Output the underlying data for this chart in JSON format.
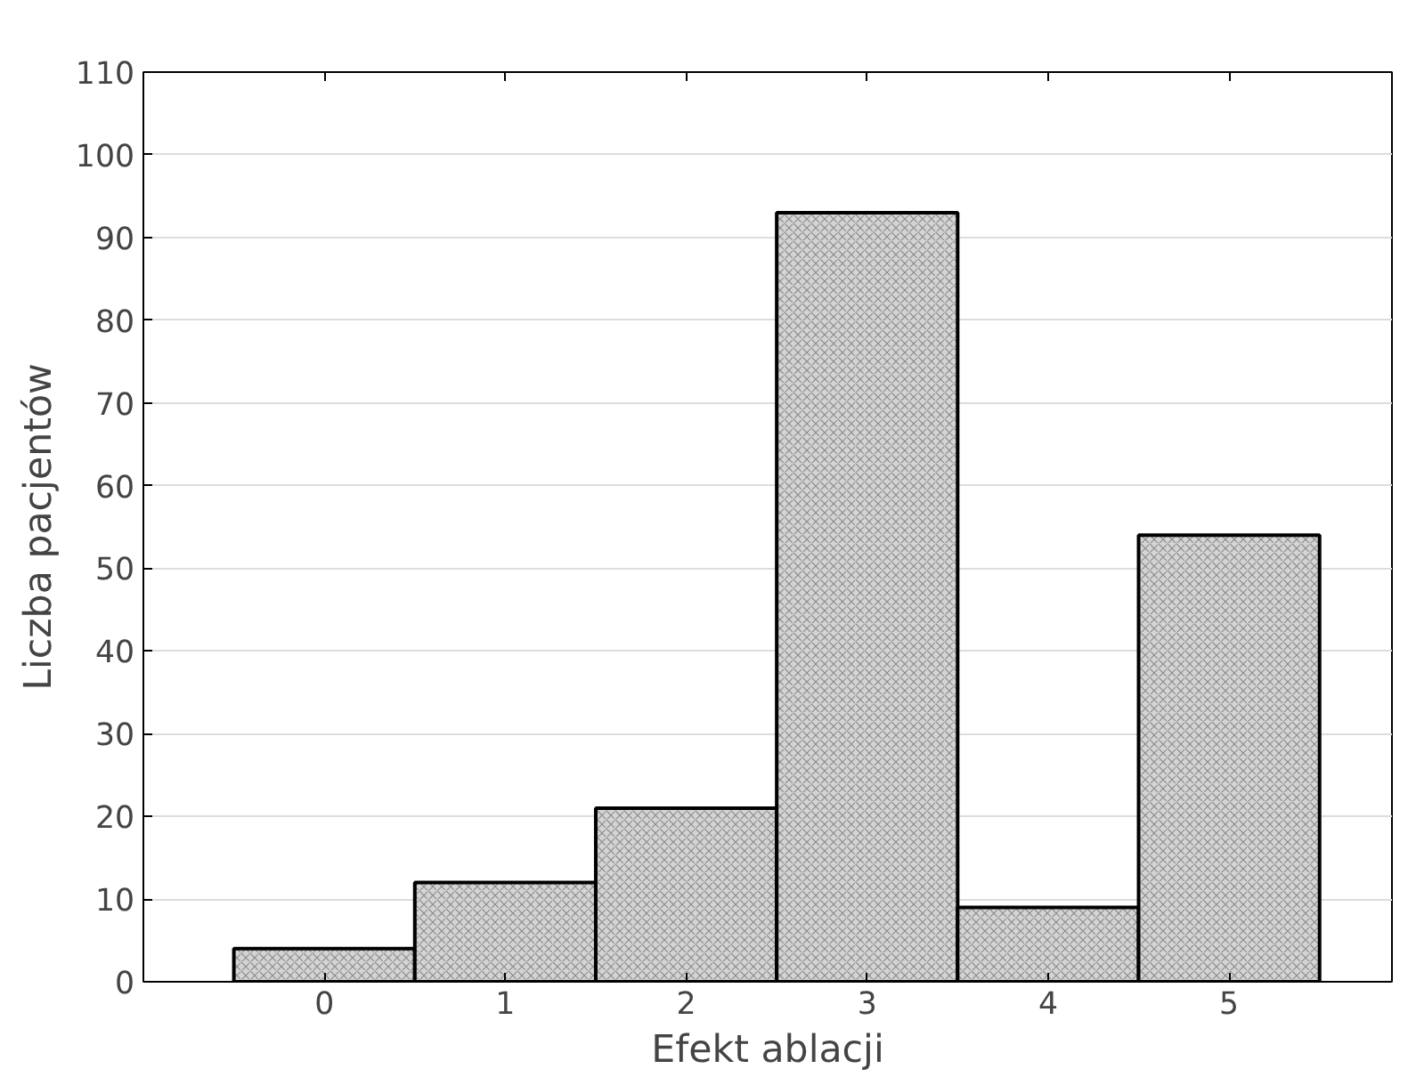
{
  "chart_data": {
    "type": "bar",
    "xlabel": "Efekt ablacji",
    "ylabel": "Liczba pacjentów",
    "categories": [
      "0",
      "1",
      "2",
      "3",
      "4",
      "5"
    ],
    "values": [
      4,
      12,
      21,
      93,
      9,
      54
    ],
    "color": "#d4d4d4",
    "ylim": [
      0,
      110
    ],
    "yticks": [
      0,
      10,
      20,
      30,
      40,
      50,
      60,
      70,
      80,
      90,
      100,
      110
    ],
    "grid": "y"
  }
}
